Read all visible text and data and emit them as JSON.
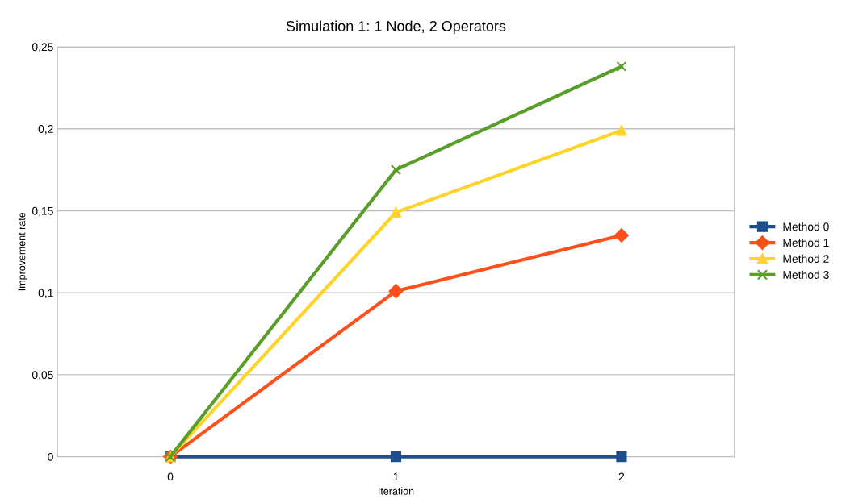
{
  "chart_data": {
    "type": "line",
    "title": "Simulation 1: 1 Node, 2 Operators",
    "xlabel": "Iteration",
    "ylabel": "Improvement rate",
    "categories": [
      "0",
      "1",
      "2"
    ],
    "series": [
      {
        "name": "Method 0",
        "color": "#1f4e8c",
        "marker": "square",
        "values": [
          0,
          0,
          0
        ]
      },
      {
        "name": "Method 1",
        "color": "#ff4f1a",
        "marker": "diamond",
        "values": [
          0,
          0.101,
          0.135
        ]
      },
      {
        "name": "Method 2",
        "color": "#ffd42a",
        "marker": "triangle",
        "values": [
          0,
          0.149,
          0.199
        ]
      },
      {
        "name": "Method 3",
        "color": "#5a9e2a",
        "marker": "cross",
        "values": [
          0,
          0.175,
          0.238
        ]
      }
    ],
    "ylim": [
      0,
      0.25
    ],
    "yticks": [
      {
        "value": 0,
        "label": "0"
      },
      {
        "value": 0.05,
        "label": "0,05"
      },
      {
        "value": 0.1,
        "label": "0,1"
      },
      {
        "value": 0.15,
        "label": "0,15"
      },
      {
        "value": 0.2,
        "label": "0,2"
      },
      {
        "value": 0.25,
        "label": "0,25"
      }
    ],
    "grid": "y",
    "legend": "right",
    "line_style": "solid"
  }
}
